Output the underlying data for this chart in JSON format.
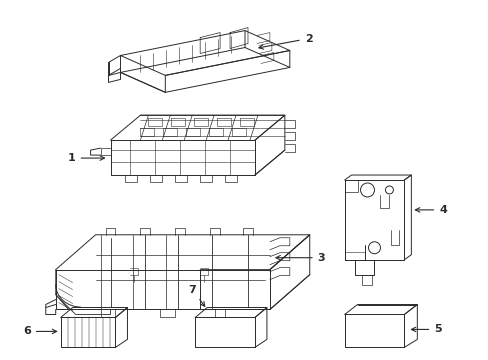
{
  "background_color": "#ffffff",
  "line_color": "#2a2a2a",
  "line_width": 0.7,
  "label_fontsize": 8,
  "figsize": [
    4.89,
    3.6
  ],
  "dpi": 100
}
